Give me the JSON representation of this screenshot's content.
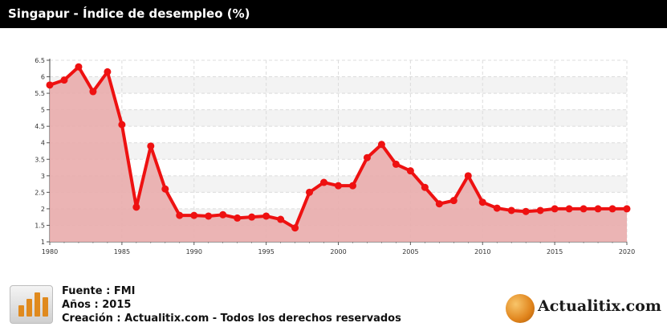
{
  "header": {
    "title": "Singapur - Índice de desempleo (%)"
  },
  "chart_data": {
    "type": "area",
    "title": "Singapur - Índice de desempleo (%)",
    "xlabel": "",
    "ylabel": "",
    "xlim": [
      1980,
      2020
    ],
    "ylim": [
      1,
      6.5
    ],
    "x_ticks": [
      "1980",
      "1985",
      "1990",
      "1995",
      "2000",
      "2005",
      "2010",
      "2015",
      "2020"
    ],
    "y_ticks": [
      "1",
      "1.5",
      "2",
      "2.5",
      "3",
      "3.5",
      "4",
      "4.5",
      "5",
      "5.5",
      "6",
      "6.5"
    ],
    "grid": true,
    "series": [
      {
        "color": "#ee1111",
        "fill": "#e9acac",
        "x": [
          1980,
          1981,
          1982,
          1983,
          1984,
          1985,
          1986,
          1987,
          1988,
          1989,
          1990,
          1991,
          1992,
          1993,
          1994,
          1995,
          1996,
          1997,
          1998,
          1999,
          2000,
          2001,
          2002,
          2003,
          2004,
          2005,
          2006,
          2007,
          2008,
          2009,
          2010,
          2011,
          2012,
          2013,
          2014,
          2015,
          2016,
          2017,
          2018,
          2019,
          2020
        ],
        "values": [
          5.75,
          5.9,
          6.3,
          5.55,
          6.15,
          4.55,
          2.05,
          3.9,
          2.6,
          1.8,
          1.8,
          1.78,
          1.82,
          1.72,
          1.75,
          1.78,
          1.68,
          1.42,
          2.5,
          2.8,
          2.7,
          2.7,
          3.55,
          3.95,
          3.35,
          3.15,
          2.65,
          2.15,
          2.25,
          3.0,
          2.2,
          2.02,
          1.95,
          1.92,
          1.95,
          2.0,
          2.0,
          2.0,
          2.0,
          2.0,
          2.0
        ]
      }
    ]
  },
  "footer": {
    "source": "Fuente : FMI",
    "years": "Años : 2015",
    "credit": "Creación : Actualitix.com - Todos los derechos reservados",
    "brand": "Actualitix.com"
  },
  "colors": {
    "header_bg": "#000000",
    "line": "#ee1111",
    "fill": "#e9acac",
    "accent": "#e08a1e"
  }
}
